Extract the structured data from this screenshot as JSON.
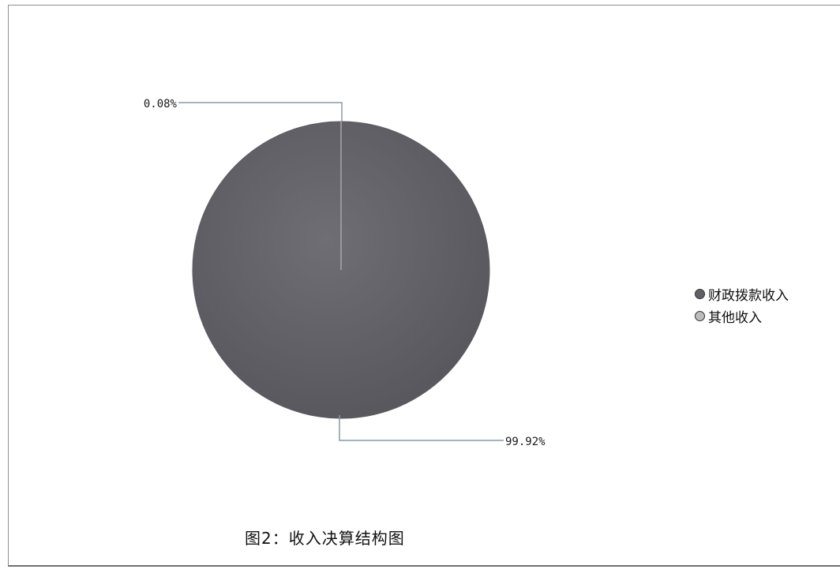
{
  "chart_data": {
    "type": "pie",
    "title": "",
    "slices": [
      {
        "name": "财政拨款收入",
        "value": 99.92,
        "label": "99.92%",
        "color": "#606066"
      },
      {
        "name": "其他收入",
        "value": 0.08,
        "label": "0.08%",
        "color": "#bcbcbc"
      }
    ],
    "legend_position": "right"
  },
  "caption": "图2：收入决算结构图"
}
